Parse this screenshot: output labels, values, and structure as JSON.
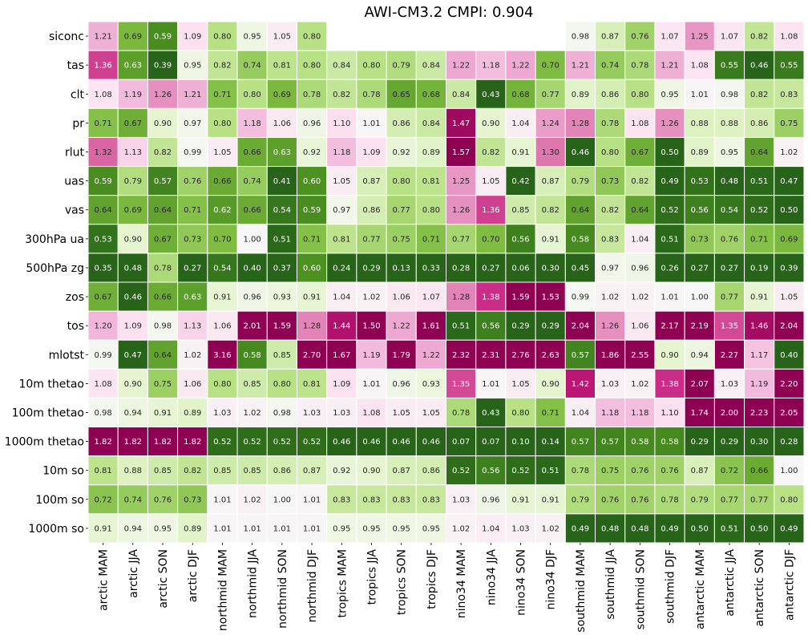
{
  "chart_data": {
    "type": "heatmap",
    "title": "AWI-CM3.2 CMPI: 0.904",
    "xlabel": "",
    "ylabel": "",
    "colormap": "PiYG_r",
    "vmin": 0.5,
    "vmax": 1.5,
    "colorbar": false,
    "gridlines": "white",
    "rows": [
      "siconc",
      "tas",
      "clt",
      "pr",
      "rlut",
      "uas",
      "vas",
      "300hPa ua",
      "500hPa zg",
      "zos",
      "tos",
      "mlotst",
      "10m thetao",
      "100m thetao",
      "1000m thetao",
      "10m so",
      "100m so",
      "1000m so"
    ],
    "columns": [
      "arctic MAM",
      "arctic JJA",
      "arctic SON",
      "arctic DJF",
      "northmid MAM",
      "northmid JJA",
      "northmid SON",
      "northmid DJF",
      "tropics MAM",
      "tropics JJA",
      "tropics SON",
      "tropics DJF",
      "nino34 MAM",
      "nino34 JJA",
      "nino34 SON",
      "nino34 DJF",
      "southmid MAM",
      "southmid JJA",
      "southmid SON",
      "southmid DJF",
      "antarctic MAM",
      "antarctic JJA",
      "antarctic SON",
      "antarctic DJF"
    ],
    "values": [
      [
        1.21,
        0.69,
        0.59,
        1.09,
        0.8,
        0.95,
        1.05,
        0.8,
        null,
        null,
        null,
        null,
        null,
        null,
        null,
        null,
        0.98,
        0.87,
        0.76,
        1.07,
        1.25,
        1.07,
        0.82,
        1.08
      ],
      [
        1.36,
        0.63,
        0.39,
        0.95,
        0.82,
        0.74,
        0.81,
        0.8,
        0.84,
        0.8,
        0.79,
        0.84,
        1.22,
        1.18,
        1.22,
        0.7,
        1.21,
        0.74,
        0.78,
        1.21,
        1.08,
        0.55,
        0.46,
        0.55
      ],
      [
        1.08,
        1.19,
        1.26,
        1.21,
        0.71,
        0.8,
        0.69,
        0.78,
        0.82,
        0.78,
        0.65,
        0.68,
        0.84,
        0.43,
        0.68,
        0.77,
        0.89,
        0.86,
        0.8,
        0.95,
        1.01,
        0.98,
        0.82,
        0.83
      ],
      [
        0.71,
        0.67,
        0.9,
        0.97,
        0.8,
        1.18,
        1.06,
        0.96,
        1.1,
        1.01,
        0.86,
        0.84,
        1.47,
        0.9,
        1.04,
        1.24,
        1.28,
        0.78,
        1.08,
        1.26,
        0.88,
        0.88,
        0.86,
        0.75
      ],
      [
        1.32,
        1.13,
        0.82,
        0.99,
        1.05,
        0.66,
        0.63,
        0.92,
        1.18,
        1.09,
        0.92,
        0.89,
        1.57,
        0.82,
        0.91,
        1.3,
        0.46,
        0.8,
        0.67,
        0.5,
        0.89,
        0.95,
        0.64,
        1.02
      ],
      [
        0.59,
        0.79,
        0.57,
        0.76,
        0.66,
        0.74,
        0.41,
        0.6,
        1.05,
        0.87,
        0.8,
        0.81,
        1.25,
        1.05,
        0.42,
        0.87,
        0.79,
        0.73,
        0.82,
        0.49,
        0.53,
        0.48,
        0.51,
        0.47
      ],
      [
        0.64,
        0.69,
        0.64,
        0.71,
        0.62,
        0.66,
        0.54,
        0.59,
        0.97,
        0.86,
        0.77,
        0.8,
        1.26,
        1.36,
        0.85,
        0.82,
        0.64,
        0.82,
        0.64,
        0.52,
        0.56,
        0.54,
        0.52,
        0.5
      ],
      [
        0.53,
        0.9,
        0.67,
        0.73,
        0.7,
        1.0,
        0.51,
        0.71,
        0.81,
        0.77,
        0.75,
        0.71,
        0.77,
        0.7,
        0.56,
        0.91,
        0.58,
        0.83,
        1.04,
        0.51,
        0.73,
        0.76,
        0.71,
        0.69
      ],
      [
        0.35,
        0.48,
        0.78,
        0.27,
        0.54,
        0.4,
        0.37,
        0.6,
        0.24,
        0.29,
        0.13,
        0.33,
        0.28,
        0.27,
        0.06,
        0.3,
        0.45,
        0.97,
        0.96,
        0.26,
        0.27,
        0.27,
        0.19,
        0.39
      ],
      [
        0.67,
        0.46,
        0.66,
        0.63,
        0.91,
        0.96,
        0.93,
        0.91,
        1.04,
        1.02,
        1.06,
        1.07,
        1.28,
        1.38,
        1.59,
        1.53,
        0.99,
        1.02,
        1.02,
        1.01,
        1.0,
        0.77,
        0.91,
        1.05
      ],
      [
        1.2,
        1.09,
        0.98,
        1.13,
        1.06,
        2.01,
        1.59,
        1.28,
        1.44,
        1.5,
        1.22,
        1.61,
        0.51,
        0.56,
        0.29,
        0.29,
        2.04,
        1.26,
        1.06,
        2.17,
        2.19,
        1.35,
        1.46,
        2.04
      ],
      [
        0.99,
        0.47,
        0.64,
        1.02,
        3.16,
        0.58,
        0.85,
        2.7,
        1.67,
        1.19,
        1.79,
        1.22,
        2.32,
        2.31,
        2.76,
        2.63,
        0.57,
        1.86,
        2.55,
        0.9,
        0.94,
        2.27,
        1.17,
        0.4
      ],
      [
        1.08,
        0.9,
        0.75,
        1.06,
        0.8,
        0.85,
        0.8,
        0.81,
        1.09,
        1.01,
        0.96,
        0.93,
        1.35,
        1.01,
        1.05,
        0.9,
        1.42,
        1.03,
        1.02,
        1.38,
        2.07,
        1.03,
        1.19,
        2.2
      ],
      [
        0.98,
        0.94,
        0.91,
        0.89,
        1.03,
        1.02,
        0.98,
        1.03,
        1.03,
        1.08,
        1.05,
        1.05,
        0.78,
        0.43,
        0.8,
        0.71,
        1.04,
        1.18,
        1.18,
        1.1,
        1.74,
        2.0,
        2.23,
        2.05
      ],
      [
        1.82,
        1.82,
        1.82,
        1.82,
        0.52,
        0.52,
        0.52,
        0.52,
        0.46,
        0.46,
        0.46,
        0.46,
        0.07,
        0.07,
        0.1,
        0.14,
        0.57,
        0.57,
        0.58,
        0.58,
        0.29,
        0.29,
        0.3,
        0.28
      ],
      [
        0.81,
        0.88,
        0.85,
        0.82,
        0.85,
        0.85,
        0.86,
        0.87,
        0.92,
        0.9,
        0.87,
        0.86,
        0.52,
        0.56,
        0.52,
        0.51,
        0.78,
        0.75,
        0.76,
        0.76,
        0.87,
        0.72,
        0.66,
        1.0
      ],
      [
        0.72,
        0.74,
        0.76,
        0.73,
        1.01,
        1.02,
        1.0,
        1.01,
        0.83,
        0.83,
        0.83,
        0.83,
        1.03,
        0.96,
        0.91,
        0.91,
        0.79,
        0.76,
        0.76,
        0.78,
        0.79,
        0.77,
        0.77,
        0.8
      ],
      [
        0.91,
        0.94,
        0.95,
        0.89,
        1.01,
        1.01,
        1.01,
        1.01,
        0.95,
        0.95,
        0.95,
        0.95,
        1.02,
        1.04,
        1.03,
        1.02,
        0.49,
        0.48,
        0.48,
        0.49,
        0.5,
        0.51,
        0.5,
        0.49
      ]
    ]
  }
}
